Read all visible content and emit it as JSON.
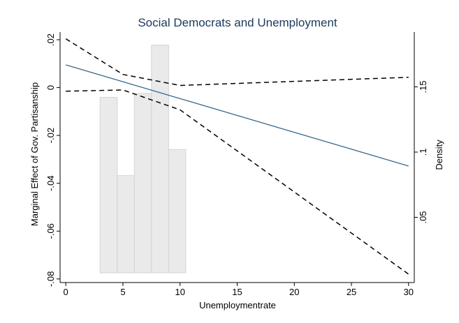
{
  "chart_data": {
    "type": "line",
    "title": "Social Democrats and Unemployment",
    "xlabel": "Unemploymentrate",
    "ylabel": "Marginal Effect of Gov. Partisanship",
    "y2label": "Density",
    "xlim": [
      -0.5,
      30.5
    ],
    "ylim": [
      -0.0815,
      0.0232
    ],
    "y2lim": [
      0.0,
      0.192
    ],
    "x_ticks": [
      0,
      5,
      10,
      15,
      20,
      25,
      30
    ],
    "y_ticks": [
      0.02,
      0,
      -0.02,
      -0.04,
      -0.06,
      -0.08
    ],
    "y_tick_labels": [
      ".02",
      "0",
      "-.02",
      "-.04",
      "-.06",
      "-.08"
    ],
    "y2_ticks": [
      0.05,
      0.1,
      0.15
    ],
    "y2_tick_labels": [
      ".05",
      ".1",
      ".15"
    ],
    "grid": false,
    "legend": "none",
    "series": [
      {
        "role": "marginal-effect",
        "style": "solid",
        "color": "#3a6a8e",
        "x": [
          0,
          30
        ],
        "y": [
          0.0095,
          -0.0328
        ]
      },
      {
        "role": "upper-ci",
        "style": "dashed",
        "color": "#000000",
        "x": [
          0,
          5,
          10,
          30
        ],
        "y": [
          0.0204,
          0.0055,
          0.0009,
          0.0043
        ]
      },
      {
        "role": "lower-ci",
        "style": "dashed",
        "color": "#000000",
        "x": [
          0,
          5,
          10,
          30
        ],
        "y": [
          -0.0015,
          -0.001,
          -0.0093,
          -0.078
        ]
      }
    ],
    "histogram": {
      "axis": "y2",
      "color": "#eaeaea",
      "edge": "#d4d4d4",
      "bins": [
        {
          "x0": 3.0,
          "x1": 4.5,
          "density": 0.142
        },
        {
          "x0": 4.5,
          "x1": 6.0,
          "density": 0.082
        },
        {
          "x0": 6.0,
          "x1": 7.5,
          "density": 0.145
        },
        {
          "x0": 7.5,
          "x1": 9.0,
          "density": 0.182
        },
        {
          "x0": 9.0,
          "x1": 10.5,
          "density": 0.102
        }
      ]
    }
  }
}
